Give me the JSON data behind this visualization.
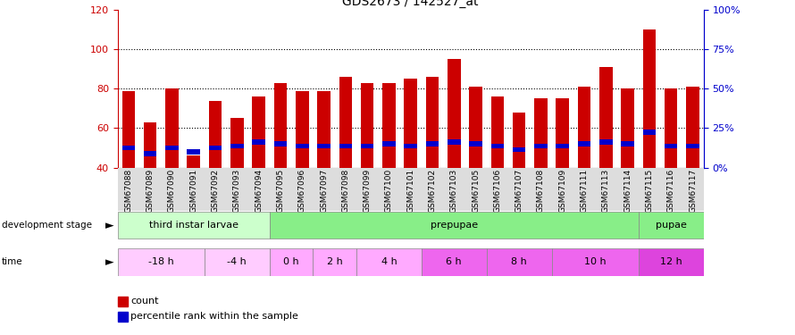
{
  "title": "GDS2673 / 142527_at",
  "samples": [
    "GSM67088",
    "GSM67089",
    "GSM67090",
    "GSM67091",
    "GSM67092",
    "GSM67093",
    "GSM67094",
    "GSM67095",
    "GSM67096",
    "GSM67097",
    "GSM67098",
    "GSM67099",
    "GSM67100",
    "GSM67101",
    "GSM67102",
    "GSM67103",
    "GSM67105",
    "GSM67106",
    "GSM67107",
    "GSM67108",
    "GSM67109",
    "GSM67111",
    "GSM67113",
    "GSM67114",
    "GSM67115",
    "GSM67116",
    "GSM67117"
  ],
  "count_values": [
    79,
    63,
    80,
    46,
    74,
    65,
    76,
    83,
    79,
    79,
    86,
    83,
    83,
    85,
    86,
    95,
    81,
    76,
    68,
    75,
    75,
    81,
    91,
    80,
    110,
    80,
    81
  ],
  "percentile_values": [
    50,
    47,
    50,
    48,
    50,
    51,
    53,
    52,
    51,
    51,
    51,
    51,
    52,
    51,
    52,
    53,
    52,
    51,
    49,
    51,
    51,
    52,
    53,
    52,
    58,
    51,
    51
  ],
  "ylim_left": [
    40,
    120
  ],
  "ylim_right": [
    0,
    100
  ],
  "yticks_left": [
    40,
    60,
    80,
    100,
    120
  ],
  "yticks_right": [
    0,
    25,
    50,
    75,
    100
  ],
  "bar_color": "#cc0000",
  "percentile_color": "#0000cc",
  "bar_width": 0.6,
  "dev_stages": [
    {
      "label": "third instar larvae",
      "start": 0,
      "end": 7,
      "color": "#ccffcc"
    },
    {
      "label": "prepupae",
      "start": 7,
      "end": 24,
      "color": "#88ee88"
    },
    {
      "label": "pupae",
      "start": 24,
      "end": 27,
      "color": "#88ee88"
    }
  ],
  "time_spans": [
    {
      "label": "-18 h",
      "start": 0,
      "end": 4,
      "color": "#ffccff"
    },
    {
      "label": "-4 h",
      "start": 4,
      "end": 7,
      "color": "#ffccff"
    },
    {
      "label": "0 h",
      "start": 7,
      "end": 9,
      "color": "#ffaaff"
    },
    {
      "label": "2 h",
      "start": 9,
      "end": 11,
      "color": "#ffaaff"
    },
    {
      "label": "4 h",
      "start": 11,
      "end": 14,
      "color": "#ffaaff"
    },
    {
      "label": "6 h",
      "start": 14,
      "end": 17,
      "color": "#ee66ee"
    },
    {
      "label": "8 h",
      "start": 17,
      "end": 20,
      "color": "#ee66ee"
    },
    {
      "label": "10 h",
      "start": 20,
      "end": 24,
      "color": "#ee66ee"
    },
    {
      "label": "12 h",
      "start": 24,
      "end": 27,
      "color": "#dd44dd"
    }
  ],
  "bg_color": "#ffffff",
  "bar_left_color": "#cc0000",
  "axis_right_color": "#0000cc",
  "xtick_bg_color": "#dddddd",
  "grid_yticks": [
    60,
    80,
    100
  ]
}
